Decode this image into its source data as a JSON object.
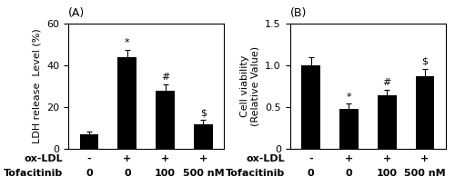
{
  "chart_data": [
    {
      "type": "bar",
      "title": "(A)",
      "ylabel": "LDH release  Level (%)",
      "categories": [
        null,
        null,
        null,
        null
      ],
      "category_rows": [
        {
          "label": "ox-LDL",
          "values": [
            "-",
            "+",
            "+",
            "+"
          ]
        },
        {
          "label": "Tofacitinib",
          "values": [
            "0",
            "0",
            "100",
            "500 nM"
          ]
        }
      ],
      "values": [
        7,
        44,
        28,
        12
      ],
      "errors": [
        1.5,
        3.5,
        3.0,
        2.0
      ],
      "annotations": [
        null,
        "*",
        "#",
        "$"
      ],
      "color": "#000000",
      "ylim": [
        0,
        60
      ],
      "yticks": [
        0,
        20,
        40,
        60
      ],
      "tick_labels": "y"
    },
    {
      "type": "bar",
      "title": "(B)",
      "ylabel": "Cell viability\n(Relative Value)",
      "categories": [
        null,
        null,
        null,
        null
      ],
      "category_rows": [
        {
          "label": "ox-LDL",
          "values": [
            "-",
            "+",
            "+",
            "+"
          ]
        },
        {
          "label": "Tofacitinib",
          "values": [
            "0",
            "0",
            "100",
            "500 nM"
          ]
        }
      ],
      "values": [
        1.0,
        0.48,
        0.64,
        0.87
      ],
      "errors": [
        0.1,
        0.06,
        0.07,
        0.09
      ],
      "annotations": [
        null,
        "*",
        "#",
        "$"
      ],
      "color": "#000000",
      "ylim": [
        0,
        1.5
      ],
      "yticks": [
        0,
        0.5,
        {
          "value": 1,
          "label": "1.0"
        },
        1.5
      ],
      "tick_labels": "y"
    }
  ]
}
